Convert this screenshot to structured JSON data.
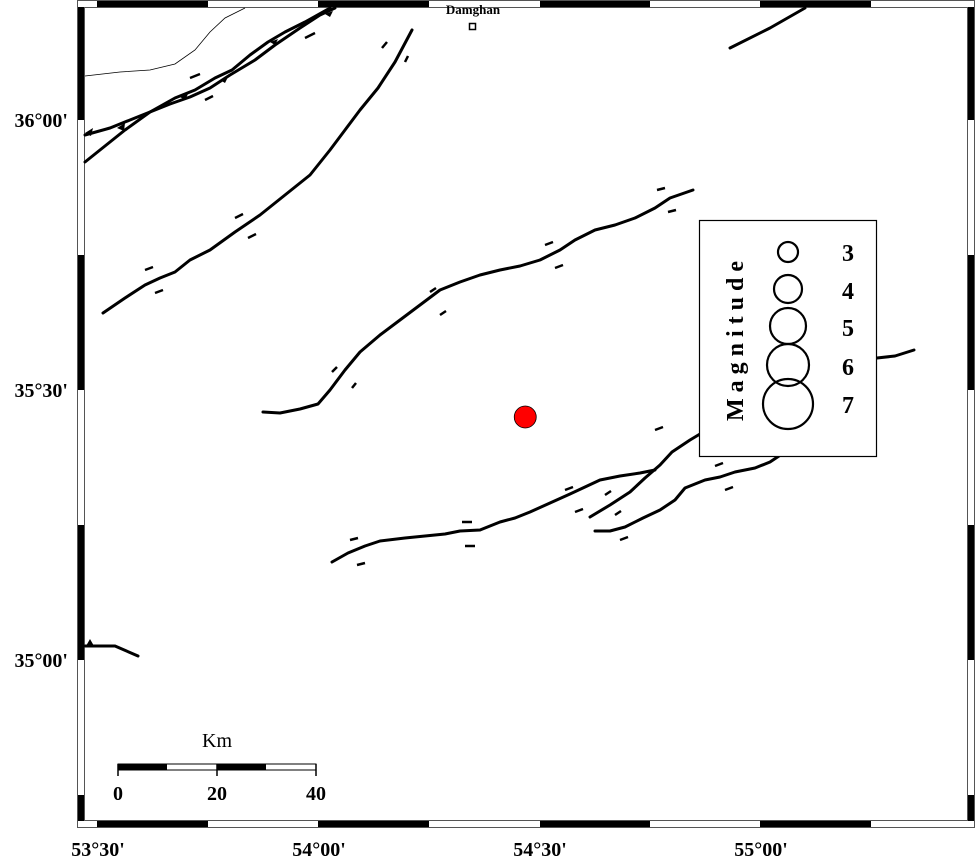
{
  "map": {
    "x_ticks": [
      "53°30'",
      "54°00'",
      "54°30'",
      "55°00'"
    ],
    "y_ticks": [
      "36°00'",
      "35°30'",
      "35°00'"
    ],
    "city": {
      "name": "Damghan",
      "lon": 54.34,
      "lat": 36.17
    },
    "event": {
      "lon": 54.47,
      "lat": 35.45,
      "color": "#ff0000"
    }
  },
  "legend": {
    "title": "Magnitude",
    "magnitudes": [
      "3",
      "4",
      "5",
      "6",
      "7"
    ]
  },
  "scale_bar": {
    "unit": "Km",
    "labels": [
      "0",
      "20",
      "40"
    ]
  }
}
